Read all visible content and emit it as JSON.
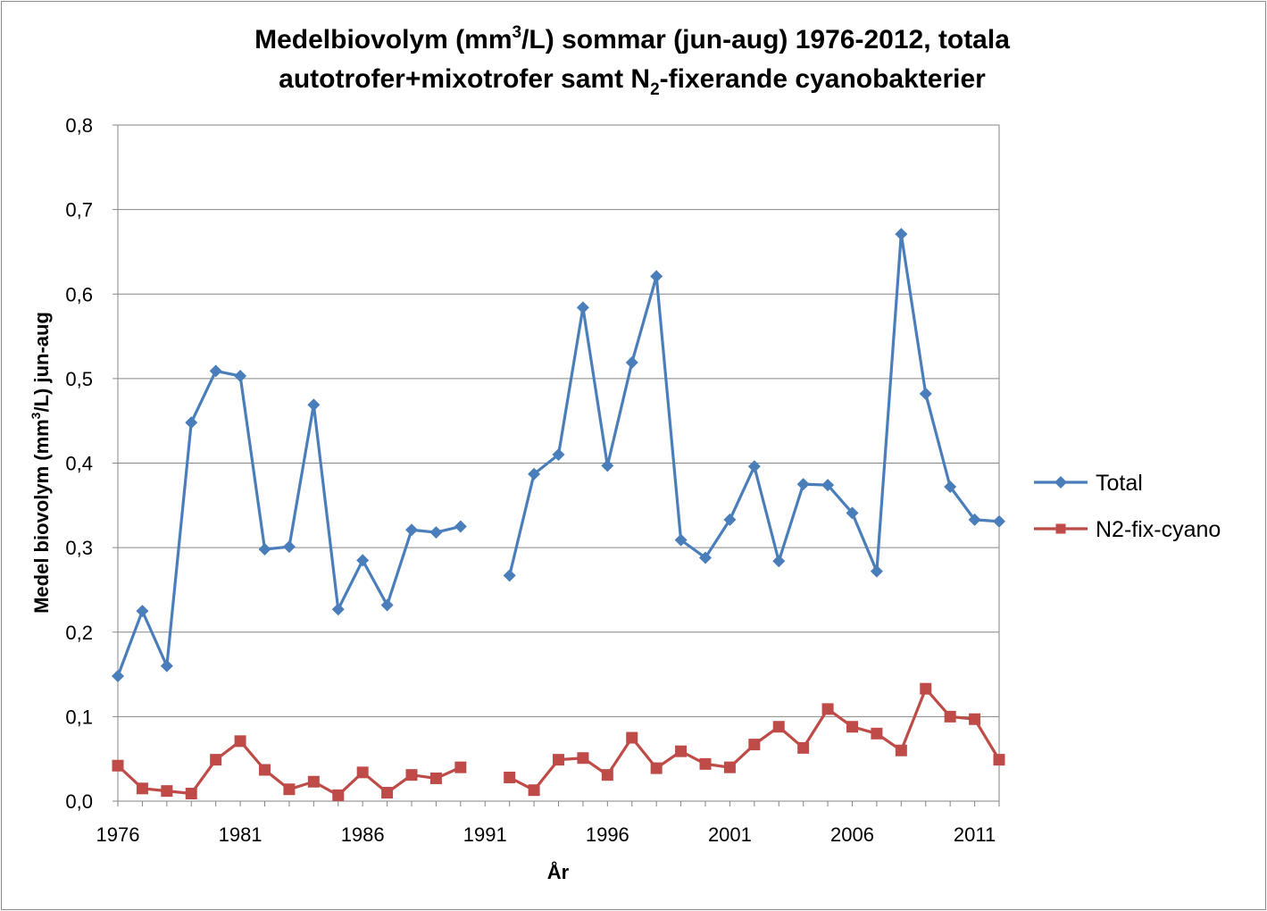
{
  "chart_data": {
    "type": "line",
    "title_line1_pre": "Medelbiovolym (mm",
    "title_line1_sup": "3",
    "title_line1_post": "/L) sommar (jun-aug) 1976-2012, totala",
    "title_line2_pre": "autotrofer+mixotrofer samt N",
    "title_line2_sub": "2",
    "title_line2_post": "-fixerande cyanobakterier",
    "xlabel": "År",
    "ylabel_pre": "Medel biovolym (mm",
    "ylabel_sup": "3",
    "ylabel_post": "/L)  jun-aug",
    "x": [
      1976,
      1977,
      1978,
      1979,
      1980,
      1981,
      1982,
      1983,
      1984,
      1985,
      1986,
      1987,
      1988,
      1989,
      1990,
      1991,
      1992,
      1993,
      1994,
      1995,
      1996,
      1997,
      1998,
      1999,
      2000,
      2001,
      2002,
      2003,
      2004,
      2005,
      2006,
      2007,
      2008,
      2009,
      2010,
      2011,
      2012
    ],
    "xlim": [
      1976,
      2012
    ],
    "xticks": [
      1976,
      1981,
      1986,
      1991,
      1996,
      2001,
      2006,
      2011
    ],
    "xtick_labels": [
      "1976",
      "1981",
      "1986",
      "1991",
      "1996",
      "2001",
      "2006",
      "2011"
    ],
    "ylim": [
      0,
      0.8
    ],
    "yticks": [
      0,
      0.1,
      0.2,
      0.3,
      0.4,
      0.5,
      0.6,
      0.7,
      0.8
    ],
    "ytick_labels": [
      "0,0",
      "0,1",
      "0,2",
      "0,3",
      "0,4",
      "0,5",
      "0,6",
      "0,7",
      "0,8"
    ],
    "grid": "horizontal",
    "legend_position": "right",
    "series": [
      {
        "name": "Total",
        "color": "#4a7ebb",
        "marker": "diamond",
        "values": [
          0.148,
          0.225,
          0.16,
          0.448,
          0.509,
          0.503,
          0.298,
          0.301,
          0.469,
          0.227,
          0.285,
          0.232,
          0.321,
          0.318,
          0.325,
          null,
          0.267,
          0.387,
          0.41,
          0.584,
          0.397,
          0.519,
          0.621,
          0.309,
          0.288,
          0.333,
          0.396,
          0.284,
          0.375,
          0.374,
          0.341,
          0.272,
          0.671,
          0.482,
          0.372,
          0.333,
          0.331
        ]
      },
      {
        "name": "N2-fix-cyano",
        "color": "#be4b48",
        "marker": "square",
        "values": [
          0.042,
          0.015,
          0.012,
          0.009,
          0.049,
          0.071,
          0.037,
          0.014,
          0.023,
          0.007,
          0.034,
          0.01,
          0.031,
          0.027,
          0.04,
          null,
          0.028,
          0.013,
          0.049,
          0.051,
          0.031,
          0.075,
          0.039,
          0.059,
          0.044,
          0.04,
          0.067,
          0.088,
          0.063,
          0.109,
          0.088,
          0.08,
          0.06,
          0.133,
          0.1,
          0.097,
          0.049
        ]
      }
    ]
  }
}
